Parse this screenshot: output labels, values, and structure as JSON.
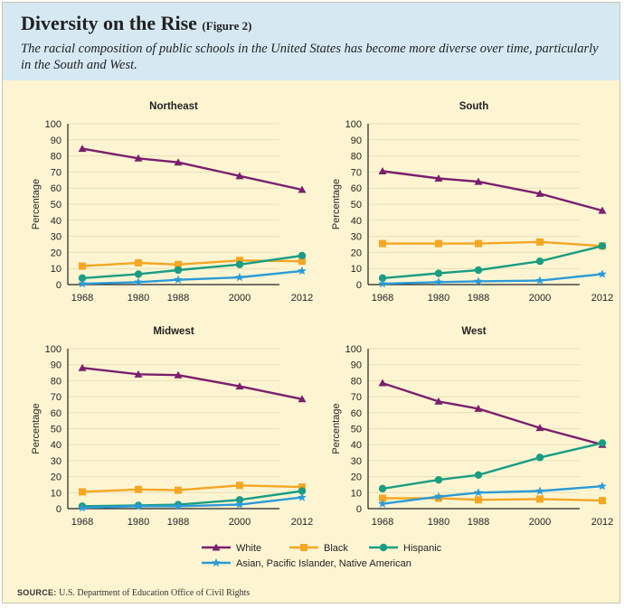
{
  "header": {
    "title": "Diversity on the Rise",
    "title_note": "(Figure 2)",
    "subtitle": "The racial composition of public schools in the United States has become more diverse over time, particularly in the South and West."
  },
  "source": {
    "label": "SOURCE:",
    "text": "U.S. Department of Education Office of Civil Rights"
  },
  "series_styles": [
    {
      "name": "White",
      "color": "#7b1f6e",
      "marker": "triangle"
    },
    {
      "name": "Black",
      "color": "#f5a623",
      "marker": "square"
    },
    {
      "name": "Hispanic",
      "color": "#1a9d82",
      "marker": "circle"
    },
    {
      "name": "Asian, Pacific Islander, Native American",
      "color": "#2b9bd6",
      "marker": "star"
    }
  ],
  "chart_data": [
    {
      "type": "line",
      "title": "Northeast",
      "xlabel": "",
      "ylabel": "Percentage",
      "ylim": [
        0,
        100
      ],
      "yticks": [
        0,
        10,
        20,
        30,
        40,
        50,
        60,
        70,
        80,
        90,
        100
      ],
      "categories": [
        "1968",
        "1980",
        "1988",
        "2000",
        "2012"
      ],
      "series": [
        {
          "name": "White",
          "values": [
            84.5,
            78.5,
            76,
            67.5,
            59
          ]
        },
        {
          "name": "Black",
          "values": [
            11.5,
            13.5,
            12.5,
            15,
            14.5
          ]
        },
        {
          "name": "Hispanic",
          "values": [
            4,
            6.5,
            9,
            12.5,
            18
          ]
        },
        {
          "name": "Asian, Pacific Islander, Native American",
          "values": [
            0.5,
            1.5,
            3,
            4.5,
            8.5
          ]
        }
      ]
    },
    {
      "type": "line",
      "title": "South",
      "xlabel": "",
      "ylabel": "Percentage",
      "ylim": [
        0,
        100
      ],
      "yticks": [
        0,
        10,
        20,
        30,
        40,
        50,
        60,
        70,
        80,
        90,
        100
      ],
      "categories": [
        "1968",
        "1980",
        "1988",
        "2000",
        "2012"
      ],
      "series": [
        {
          "name": "White",
          "values": [
            70.5,
            66,
            64,
            56.5,
            46
          ]
        },
        {
          "name": "Black",
          "values": [
            25.5,
            25.5,
            25.5,
            26.5,
            24
          ]
        },
        {
          "name": "Hispanic",
          "values": [
            4,
            7,
            9,
            14.5,
            24
          ]
        },
        {
          "name": "Asian, Pacific Islander, Native American",
          "values": [
            0.5,
            1.5,
            2,
            2.5,
            6.5
          ]
        }
      ]
    },
    {
      "type": "line",
      "title": "Midwest",
      "xlabel": "",
      "ylabel": "Percentage",
      "ylim": [
        0,
        100
      ],
      "yticks": [
        0,
        10,
        20,
        30,
        40,
        50,
        60,
        70,
        80,
        90,
        100
      ],
      "categories": [
        "1968",
        "1980",
        "1988",
        "2000",
        "2012"
      ],
      "series": [
        {
          "name": "White",
          "values": [
            88,
            84,
            83.5,
            76.5,
            68.5
          ]
        },
        {
          "name": "Black",
          "values": [
            10.5,
            12,
            11.5,
            14.5,
            13.5
          ]
        },
        {
          "name": "Hispanic",
          "values": [
            1.5,
            2,
            2.5,
            5.5,
            11
          ]
        },
        {
          "name": "Asian, Pacific Islander, Native American",
          "values": [
            0.5,
            1.5,
            1.5,
            2.5,
            7
          ]
        }
      ]
    },
    {
      "type": "line",
      "title": "West",
      "xlabel": "",
      "ylabel": "Percentage",
      "ylim": [
        0,
        100
      ],
      "yticks": [
        0,
        10,
        20,
        30,
        40,
        50,
        60,
        70,
        80,
        90,
        100
      ],
      "categories": [
        "1968",
        "1980",
        "1988",
        "2000",
        "2012"
      ],
      "series": [
        {
          "name": "White",
          "values": [
            78.5,
            67,
            62.5,
            50.5,
            40
          ]
        },
        {
          "name": "Black",
          "values": [
            6.5,
            6.5,
            5.5,
            6,
            5
          ]
        },
        {
          "name": "Hispanic",
          "values": [
            12.5,
            18,
            21,
            32,
            41
          ]
        },
        {
          "name": "Asian, Pacific Islander, Native American",
          "values": [
            3,
            7.5,
            10,
            11,
            14
          ]
        }
      ]
    }
  ]
}
